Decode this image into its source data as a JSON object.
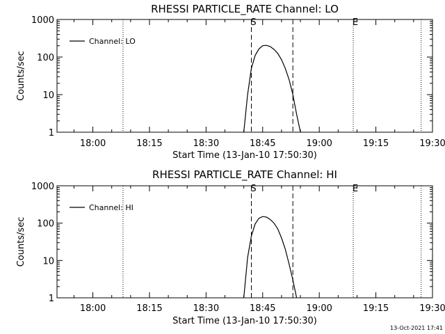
{
  "footer": {
    "timestamp": "13-Oct-2021 17:41"
  },
  "chart_data": [
    {
      "type": "line",
      "title": "RHESSI PARTICLE_RATE Channel: LO",
      "xlabel": "Start Time (13-Jan-10 17:50:30)",
      "ylabel": "Counts/sec",
      "yscale": "log",
      "xlim": [
        "17:50:30",
        "19:30"
      ],
      "ylim": [
        1,
        1000
      ],
      "x_ticks": [
        "18:00",
        "18:15",
        "18:30",
        "18:45",
        "19:00",
        "19:15",
        "19:30"
      ],
      "y_ticks": [
        "1",
        "10",
        "100",
        "1000"
      ],
      "grid": false,
      "legend": "top-left",
      "series": [
        {
          "name": "Channel: LO",
          "x": [
            "18:40",
            "18:41",
            "18:42",
            "18:43",
            "18:44",
            "18:45",
            "18:46",
            "18:47",
            "18:48",
            "18:49",
            "18:50",
            "18:51",
            "18:52",
            "18:53",
            "18:54",
            "18:55"
          ],
          "y": [
            1,
            10,
            50,
            110,
            165,
            200,
            205,
            190,
            160,
            125,
            85,
            50,
            25,
            10,
            3,
            1
          ]
        }
      ],
      "vlines_dotted": [
        "18:08",
        "19:09",
        "19:27"
      ],
      "vlines_dashed": [
        "18:42",
        "18:53"
      ],
      "markers": [
        {
          "label": "S",
          "x": "18:42"
        },
        {
          "label": "E",
          "x": "19:09"
        }
      ]
    },
    {
      "type": "line",
      "title": "RHESSI PARTICLE_RATE Channel: HI",
      "xlabel": "Start Time (13-Jan-10 17:50:30)",
      "ylabel": "Counts/sec",
      "yscale": "log",
      "xlim": [
        "17:50:30",
        "19:30"
      ],
      "ylim": [
        1,
        1000
      ],
      "x_ticks": [
        "18:00",
        "18:15",
        "18:30",
        "18:45",
        "19:00",
        "19:15",
        "19:30"
      ],
      "y_ticks": [
        "1",
        "10",
        "100",
        "1000"
      ],
      "grid": false,
      "legend": "top-left",
      "series": [
        {
          "name": "Channel: HI",
          "x": [
            "18:40",
            "18:41",
            "18:42",
            "18:43",
            "18:44",
            "18:45",
            "18:46",
            "18:47",
            "18:48",
            "18:49",
            "18:50",
            "18:51",
            "18:52",
            "18:53",
            "18:54"
          ],
          "y": [
            1,
            12,
            45,
            95,
            135,
            150,
            145,
            125,
            100,
            70,
            40,
            20,
            8,
            3,
            1
          ]
        }
      ],
      "vlines_dotted": [
        "18:08",
        "19:09",
        "19:27"
      ],
      "vlines_dashed": [
        "18:42",
        "18:53"
      ],
      "markers": [
        {
          "label": "S",
          "x": "18:42"
        },
        {
          "label": "E",
          "x": "19:09"
        }
      ]
    }
  ]
}
